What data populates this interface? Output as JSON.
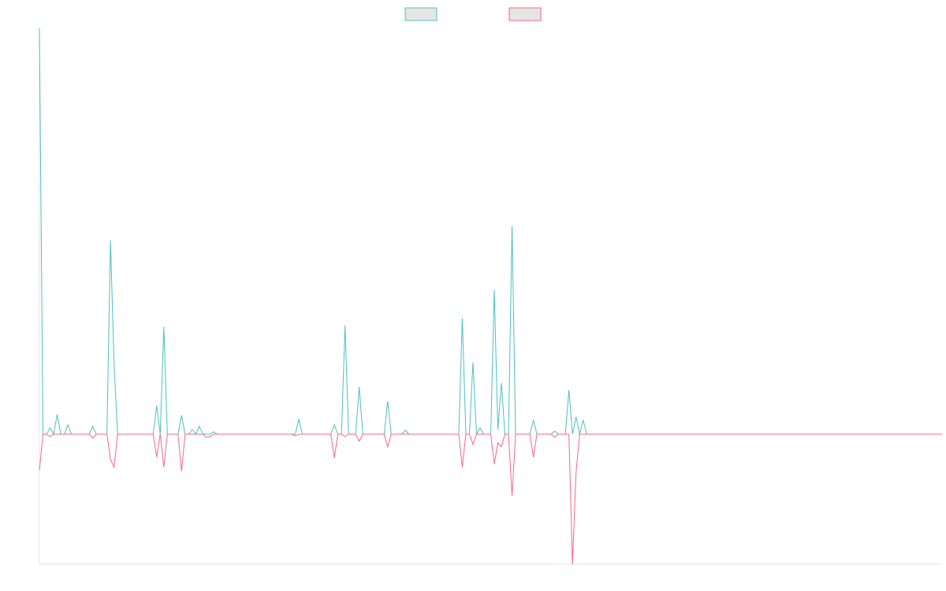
{
  "chart_data": {
    "type": "line",
    "ylim": [
      -165,
      515
    ],
    "series": [
      {
        "color": "#4bc0c0",
        "values": [
          515,
          0,
          0,
          8,
          0,
          25,
          0,
          0,
          12,
          0,
          0,
          0,
          0,
          0,
          0,
          10,
          0,
          0,
          0,
          0,
          246,
          90,
          0,
          0,
          0,
          0,
          0,
          0,
          0,
          0,
          0,
          0,
          0,
          36,
          0,
          136,
          0,
          0,
          0,
          0,
          24,
          0,
          0,
          6,
          0,
          10,
          0,
          0,
          0,
          3,
          0,
          0,
          0,
          0,
          0,
          0,
          0,
          0,
          0,
          0,
          0,
          0,
          0,
          0,
          0,
          0,
          0,
          0,
          0,
          0,
          0,
          0,
          0,
          19,
          0,
          0,
          0,
          0,
          0,
          0,
          0,
          0,
          0,
          12,
          0,
          0,
          138,
          0,
          0,
          0,
          60,
          0,
          0,
          0,
          0,
          0,
          0,
          0,
          42,
          0,
          0,
          0,
          0,
          5,
          0,
          0,
          0,
          0,
          0,
          0,
          0,
          0,
          0,
          0,
          0,
          0,
          0,
          0,
          0,
          147,
          0,
          0,
          91,
          0,
          8,
          0,
          0,
          0,
          183,
          6,
          65,
          0,
          0,
          264,
          0,
          0,
          0,
          0,
          0,
          18,
          0,
          0,
          0,
          0,
          0,
          4,
          0,
          0,
          0,
          56,
          0,
          22,
          0,
          18,
          0,
          0,
          0,
          0,
          0,
          0,
          0,
          0,
          0,
          0,
          0,
          0,
          0,
          0,
          0,
          0,
          0,
          0,
          0,
          0,
          0,
          0,
          0,
          0,
          0,
          0,
          0,
          0,
          0,
          0,
          0,
          0,
          0,
          0,
          0,
          0,
          0,
          0,
          0,
          0,
          0,
          0,
          0,
          0,
          0,
          0,
          0,
          0,
          0,
          0,
          0,
          0,
          0,
          0,
          0,
          0,
          0,
          0,
          0,
          0,
          0,
          0,
          0,
          0,
          0,
          0,
          0,
          0,
          0,
          0,
          0,
          0,
          0,
          0,
          0,
          0,
          0,
          0,
          0,
          0,
          0,
          0,
          0,
          0,
          0,
          0,
          0,
          0,
          0,
          0,
          0,
          0,
          0,
          0,
          0,
          0,
          0,
          0,
          0,
          0,
          0
        ]
      },
      {
        "color": "#ff6384",
        "values": [
          -46,
          0,
          0,
          -3,
          0,
          0,
          0,
          0,
          0,
          0,
          0,
          0,
          0,
          0,
          0,
          -5,
          0,
          0,
          0,
          0,
          -32,
          -42,
          0,
          0,
          0,
          0,
          0,
          0,
          0,
          0,
          0,
          0,
          0,
          -29,
          0,
          -42,
          0,
          0,
          0,
          0,
          -47,
          0,
          0,
          0,
          0,
          0,
          0,
          -4,
          -3,
          0,
          0,
          0,
          0,
          0,
          0,
          0,
          0,
          0,
          0,
          0,
          0,
          0,
          0,
          0,
          0,
          0,
          0,
          0,
          0,
          0,
          0,
          0,
          -2,
          0,
          0,
          0,
          0,
          0,
          0,
          0,
          0,
          0,
          0,
          -30,
          0,
          0,
          -3,
          0,
          0,
          0,
          -9,
          0,
          0,
          0,
          0,
          0,
          0,
          0,
          -16,
          0,
          0,
          0,
          0,
          0,
          0,
          0,
          0,
          0,
          0,
          0,
          0,
          0,
          0,
          0,
          0,
          0,
          0,
          0,
          0,
          -42,
          0,
          0,
          -13,
          0,
          0,
          0,
          0,
          0,
          -38,
          -11,
          -16,
          0,
          0,
          -78,
          0,
          0,
          0,
          0,
          0,
          -29,
          0,
          0,
          0,
          0,
          0,
          -4,
          0,
          0,
          0,
          0,
          -165,
          -49,
          0,
          0,
          0,
          0,
          0,
          0,
          0,
          0,
          0,
          0,
          0,
          0,
          0,
          0,
          0,
          0,
          0,
          0,
          0,
          0,
          0,
          0,
          0,
          0,
          0,
          0,
          0,
          0,
          0,
          0,
          0,
          0,
          0,
          0,
          0,
          0,
          0,
          0,
          0,
          0,
          0,
          0,
          0,
          0,
          0,
          0,
          0,
          0,
          0,
          0,
          0,
          0,
          0,
          0,
          0,
          0,
          0,
          0,
          0,
          0,
          0,
          0,
          0,
          0,
          0,
          0,
          0,
          0,
          0,
          0,
          0,
          0,
          0,
          0,
          0,
          0,
          0,
          0,
          0,
          0,
          0,
          0,
          0,
          0,
          0,
          0,
          0,
          0,
          0,
          0,
          0,
          0,
          0,
          0,
          0,
          0,
          0,
          0,
          0,
          0,
          0,
          0,
          0
        ]
      }
    ]
  }
}
